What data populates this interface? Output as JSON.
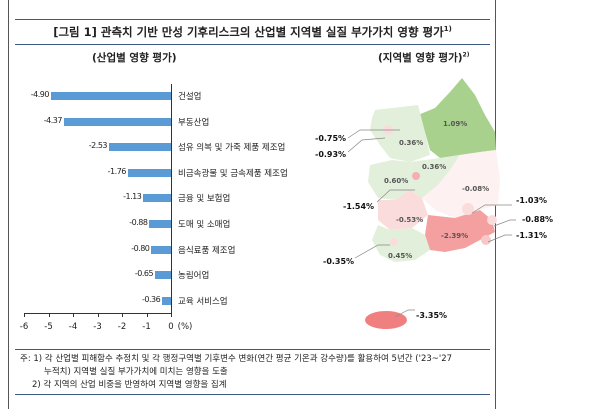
{
  "title": "[그림 1] 관측치 기반 만성 기후리스크의 산업별 지역별 실질 부가가치 영향 평가",
  "title_sup": "1)",
  "left_subtitle": "(산업별 영향 평가)",
  "right_subtitle": "(지역별 영향 평가)",
  "right_subtitle_sup": "2)",
  "chart_data": {
    "type": "bar",
    "orientation": "horizontal",
    "categories": [
      "건설업",
      "부동산업",
      "섬유 의복 및 가죽 제품 제조업",
      "비금속광물 및 금속제품 제조업",
      "금융 및 보험업",
      "도매 및 소매업",
      "음식료품 제조업",
      "농림어업",
      "교육 서비스업"
    ],
    "values": [
      -4.9,
      -4.37,
      -2.53,
      -1.76,
      -1.13,
      -0.88,
      -0.8,
      -0.65,
      -0.36
    ],
    "value_labels": [
      "-4.90",
      "-4.37",
      "-2.53",
      "-1.76",
      "-1.13",
      "-0.88",
      "-0.80",
      "-0.65",
      "-0.36"
    ],
    "xlim": [
      -6,
      0
    ],
    "xticks": [
      "-6",
      "-5",
      "-4",
      "-3",
      "-2",
      "-1",
      "0"
    ],
    "xunit": "(%)",
    "bar_color": "#5b9bd5"
  },
  "map": {
    "regions": [
      {
        "id": "gangwon",
        "value": "1.09%"
      },
      {
        "id": "gyeonggi",
        "value": "0.36%"
      },
      {
        "id": "chungbuk",
        "value": "0.36%"
      },
      {
        "id": "chungnam",
        "value": "0.60%"
      },
      {
        "id": "gyeongbuk",
        "value": "-0.08%"
      },
      {
        "id": "jeonbuk",
        "value": "-0.53%"
      },
      {
        "id": "gyeongnam",
        "value": "-2.39%"
      },
      {
        "id": "jeonnam",
        "value": "0.45%"
      }
    ],
    "callouts": [
      {
        "id": "seoul",
        "value": "-0.75%"
      },
      {
        "id": "incheon",
        "value": "-0.93%"
      },
      {
        "id": "daejeon",
        "value": "-1.54%"
      },
      {
        "id": "gwangju",
        "value": "-0.35%"
      },
      {
        "id": "daegu",
        "value": "-1.03%"
      },
      {
        "id": "ulsan",
        "value": "-0.88%"
      },
      {
        "id": "busan",
        "value": "-1.31%"
      },
      {
        "id": "jeju",
        "value": "-3.35%"
      }
    ],
    "colors": {
      "positive_strong": "#a9d18e",
      "positive_light": "#e2efda",
      "negative_light": "#fbdcdc",
      "negative_strong": "#f4a0a0",
      "negative_strongest": "#f08080"
    }
  },
  "notes": [
    "주: 1) 각 산업별 피해함수 추정치 및 각 행정구역별 기후변수 변화(연간 평균 기온과 강수량)를 활용하여 5년간 ('23~'27",
    "누적치) 지역별 실질 부가가치에 미치는 영향을 도출",
    "2) 각 지역의 산업 비중을 반영하여 지역별 영향을 집계"
  ]
}
